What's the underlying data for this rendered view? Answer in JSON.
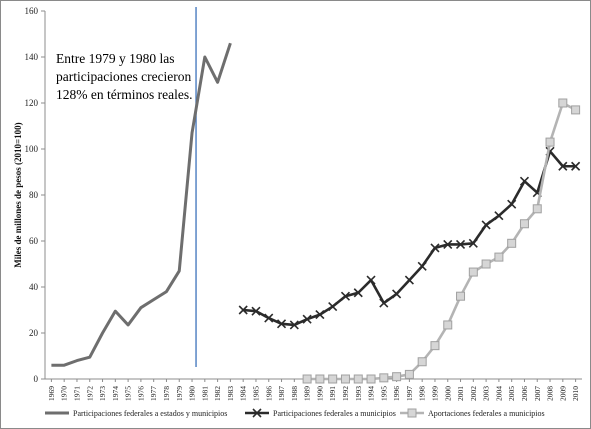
{
  "chart_data": {
    "type": "line",
    "title": "",
    "xlabel": "",
    "ylabel": "Miles de millones de pesos (2010=100)",
    "ylim": [
      0,
      160
    ],
    "yticks": [
      0,
      20,
      40,
      60,
      80,
      100,
      120,
      140,
      160
    ],
    "grid": false,
    "legend_position": "bottom",
    "x": [
      1969,
      1970,
      1971,
      1972,
      1973,
      1974,
      1975,
      1976,
      1977,
      1978,
      1979,
      1980,
      1981,
      1982,
      1983,
      1984,
      1985,
      1986,
      1987,
      1988,
      1989,
      1990,
      1991,
      1992,
      1993,
      1994,
      1995,
      1996,
      1997,
      1998,
      1999,
      2000,
      2001,
      2002,
      2003,
      2004,
      2005,
      2006,
      2007,
      2008,
      2009,
      2010
    ],
    "vline_x": 1980,
    "annotation": [
      "Entre 1979 y 1980 las",
      "participaciones crecieron",
      "128% en términos reales."
    ],
    "series": [
      {
        "name": "Participaciones federales a estados y municipios",
        "color": "#6e6e6e",
        "marker": "none",
        "points": [
          [
            1969,
            6
          ],
          [
            1970,
            6
          ],
          [
            1971,
            8
          ],
          [
            1972,
            9.5
          ],
          [
            1973,
            20
          ],
          [
            1974,
            29.5
          ],
          [
            1975,
            23.5
          ],
          [
            1976,
            31
          ],
          [
            1977,
            34.5
          ],
          [
            1978,
            38
          ],
          [
            1979,
            47
          ],
          [
            1980,
            107
          ],
          [
            1981,
            140
          ],
          [
            1982,
            129
          ],
          [
            1983,
            146
          ]
        ]
      },
      {
        "name": "Participaciones federales a municipios",
        "color": "#2b2b2b",
        "marker": "x",
        "points": [
          [
            1984,
            30
          ],
          [
            1985,
            29.5
          ],
          [
            1986,
            26.5
          ],
          [
            1987,
            24
          ],
          [
            1988,
            23.5
          ],
          [
            1989,
            26
          ],
          [
            1990,
            28
          ],
          [
            1991,
            31.5
          ],
          [
            1992,
            36
          ],
          [
            1993,
            37.5
          ],
          [
            1994,
            43
          ],
          [
            1995,
            33
          ],
          [
            1996,
            37
          ],
          [
            1997,
            43
          ],
          [
            1998,
            49
          ],
          [
            1999,
            57
          ],
          [
            2000,
            58.5
          ],
          [
            2001,
            58.5
          ],
          [
            2002,
            59
          ],
          [
            2003,
            67
          ],
          [
            2004,
            71
          ],
          [
            2005,
            76
          ],
          [
            2006,
            86
          ],
          [
            2007,
            81
          ],
          [
            2008,
            99
          ],
          [
            2009,
            92.5
          ],
          [
            2010,
            92.5
          ]
        ]
      },
      {
        "name": "Aportaciones federales a municipios",
        "color": "#b4b4b4",
        "marker": "square",
        "points": [
          [
            1989,
            0
          ],
          [
            1990,
            0
          ],
          [
            1991,
            0
          ],
          [
            1992,
            0
          ],
          [
            1993,
            0
          ],
          [
            1994,
            0
          ],
          [
            1995,
            0.5
          ],
          [
            1996,
            1
          ],
          [
            1997,
            2
          ],
          [
            1998,
            7.5
          ],
          [
            1999,
            14.5
          ],
          [
            2000,
            23.5
          ],
          [
            2001,
            36
          ],
          [
            2002,
            46.5
          ],
          [
            2003,
            50
          ],
          [
            2004,
            53
          ],
          [
            2005,
            59
          ],
          [
            2006,
            67.5
          ],
          [
            2007,
            74
          ],
          [
            2008,
            103
          ],
          [
            2009,
            120
          ],
          [
            2010,
            117
          ]
        ]
      }
    ]
  }
}
